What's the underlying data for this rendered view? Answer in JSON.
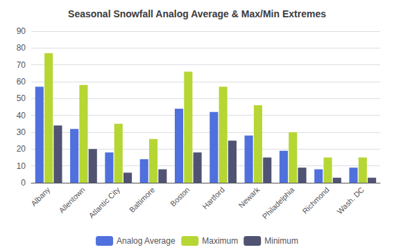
{
  "chart_data": {
    "type": "bar",
    "title": "Seasonal Snowfall Analog Average & Max/Min Extremes",
    "categories": [
      "Albany",
      "Allentown",
      "Atlantic City",
      "Baltimore",
      "Boston",
      "Hartford",
      "Newark",
      "Philadelphia",
      "Richmond",
      "Wash. DC"
    ],
    "series": [
      {
        "name": "Analog Average",
        "values": [
          57,
          32,
          18,
          14,
          44,
          42,
          28,
          19,
          8,
          9
        ]
      },
      {
        "name": "Maximum",
        "values": [
          77,
          58,
          35,
          26,
          66,
          57,
          46,
          30,
          15,
          15
        ]
      },
      {
        "name": "Minimum",
        "values": [
          34,
          20,
          6,
          8,
          18,
          25,
          15,
          9,
          3,
          3
        ]
      }
    ],
    "ylim": [
      0,
      90
    ],
    "yticks": [
      0,
      10,
      20,
      30,
      40,
      50,
      60,
      70,
      80,
      90
    ],
    "grid": true,
    "legend": "bottom"
  }
}
